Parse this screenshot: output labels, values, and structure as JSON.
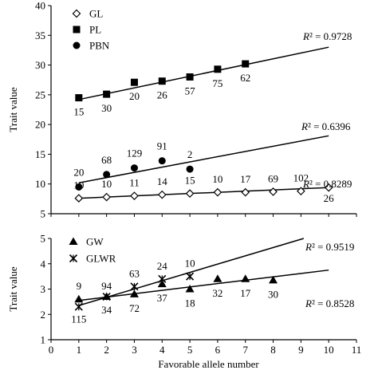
{
  "chart_data": [
    {
      "type": "scatter",
      "ylabel": "Trait value",
      "xlim": [
        0,
        11
      ],
      "ylim": [
        5,
        40
      ],
      "yticks": [
        "5",
        "10",
        "15",
        "20",
        "25",
        "30",
        "35",
        "40"
      ],
      "legend": {
        "placement": "top-left",
        "entries": [
          "GL",
          "PL",
          "PBN"
        ]
      },
      "series": [
        {
          "name": "GL",
          "marker": "diamond-open",
          "x": [
            1,
            2,
            3,
            4,
            5,
            6,
            7,
            8,
            9,
            10
          ],
          "y": [
            7.6,
            7.8,
            8.0,
            8.2,
            8.4,
            8.6,
            8.6,
            8.7,
            8.8,
            9.4
          ],
          "labels": [
            "10",
            "10",
            "11",
            "14",
            "15",
            "10",
            "17",
            "69",
            "102",
            "26"
          ],
          "trend": {
            "x": [
              1,
              10
            ],
            "y": [
              7.6,
              9.4
            ],
            "r2_prefix": "R",
            "r2_value": "² = 0.8289"
          }
        },
        {
          "name": "PL",
          "marker": "square-filled",
          "x": [
            1,
            2,
            3,
            4,
            5,
            6,
            7
          ],
          "y": [
            24.5,
            25.1,
            27.1,
            27.3,
            28.0,
            29.3,
            30.2
          ],
          "labels": [
            "15",
            "30",
            "20",
            "26",
            "57",
            "75",
            "62"
          ],
          "trend": {
            "x": [
              1,
              10
            ],
            "y": [
              24.2,
              33.0
            ],
            "r2_prefix": "R",
            "r2_value": "² = 0.9728"
          }
        },
        {
          "name": "PBN",
          "marker": "circle-filled",
          "x": [
            1,
            2,
            3,
            4,
            5
          ],
          "y": [
            9.5,
            11.6,
            12.7,
            13.9,
            12.5
          ],
          "labels": [
            "20",
            "68",
            "129",
            "91",
            "2"
          ],
          "trend": {
            "x": [
              1,
              10
            ],
            "y": [
              10.2,
              18.1
            ],
            "r2_prefix": "R",
            "r2_value": "² = 0.6396"
          }
        }
      ]
    },
    {
      "type": "scatter",
      "xlabel": "Favorable allele number",
      "ylabel": "Trait value",
      "xlim": [
        0,
        11
      ],
      "ylim": [
        1,
        5
      ],
      "xticks": [
        "0",
        "1",
        "2",
        "3",
        "4",
        "5",
        "6",
        "7",
        "8",
        "9",
        "10",
        "11"
      ],
      "yticks": [
        "1",
        "2",
        "3",
        "4",
        "5"
      ],
      "legend": {
        "placement": "top-left",
        "entries": [
          "GW",
          "GLWR"
        ]
      },
      "series": [
        {
          "name": "GW",
          "marker": "triangle-filled",
          "x": [
            1,
            2,
            3,
            4,
            5,
            6,
            7,
            8
          ],
          "y": [
            2.6,
            2.7,
            2.8,
            3.2,
            3.0,
            3.4,
            3.4,
            3.35
          ],
          "labels": [
            "9",
            "94",
            "72",
            "37",
            "18",
            "32",
            "17",
            "30"
          ],
          "trend": {
            "x": [
              1,
              10
            ],
            "y": [
              2.55,
              3.75
            ],
            "r2_prefix": "R",
            "r2_value": "² = 0.8528"
          }
        },
        {
          "name": "GLWR",
          "marker": "x-star",
          "x": [
            1,
            2,
            3,
            4,
            5
          ],
          "y": [
            2.3,
            2.7,
            3.1,
            3.4,
            3.5
          ],
          "labels": [
            "115",
            "34",
            "63",
            "24",
            "10"
          ],
          "trend": {
            "x": [
              1,
              9.1
            ],
            "y": [
              2.35,
              5.0
            ],
            "r2_prefix": "R",
            "r2_value": "² = 0.9519"
          }
        }
      ]
    }
  ]
}
